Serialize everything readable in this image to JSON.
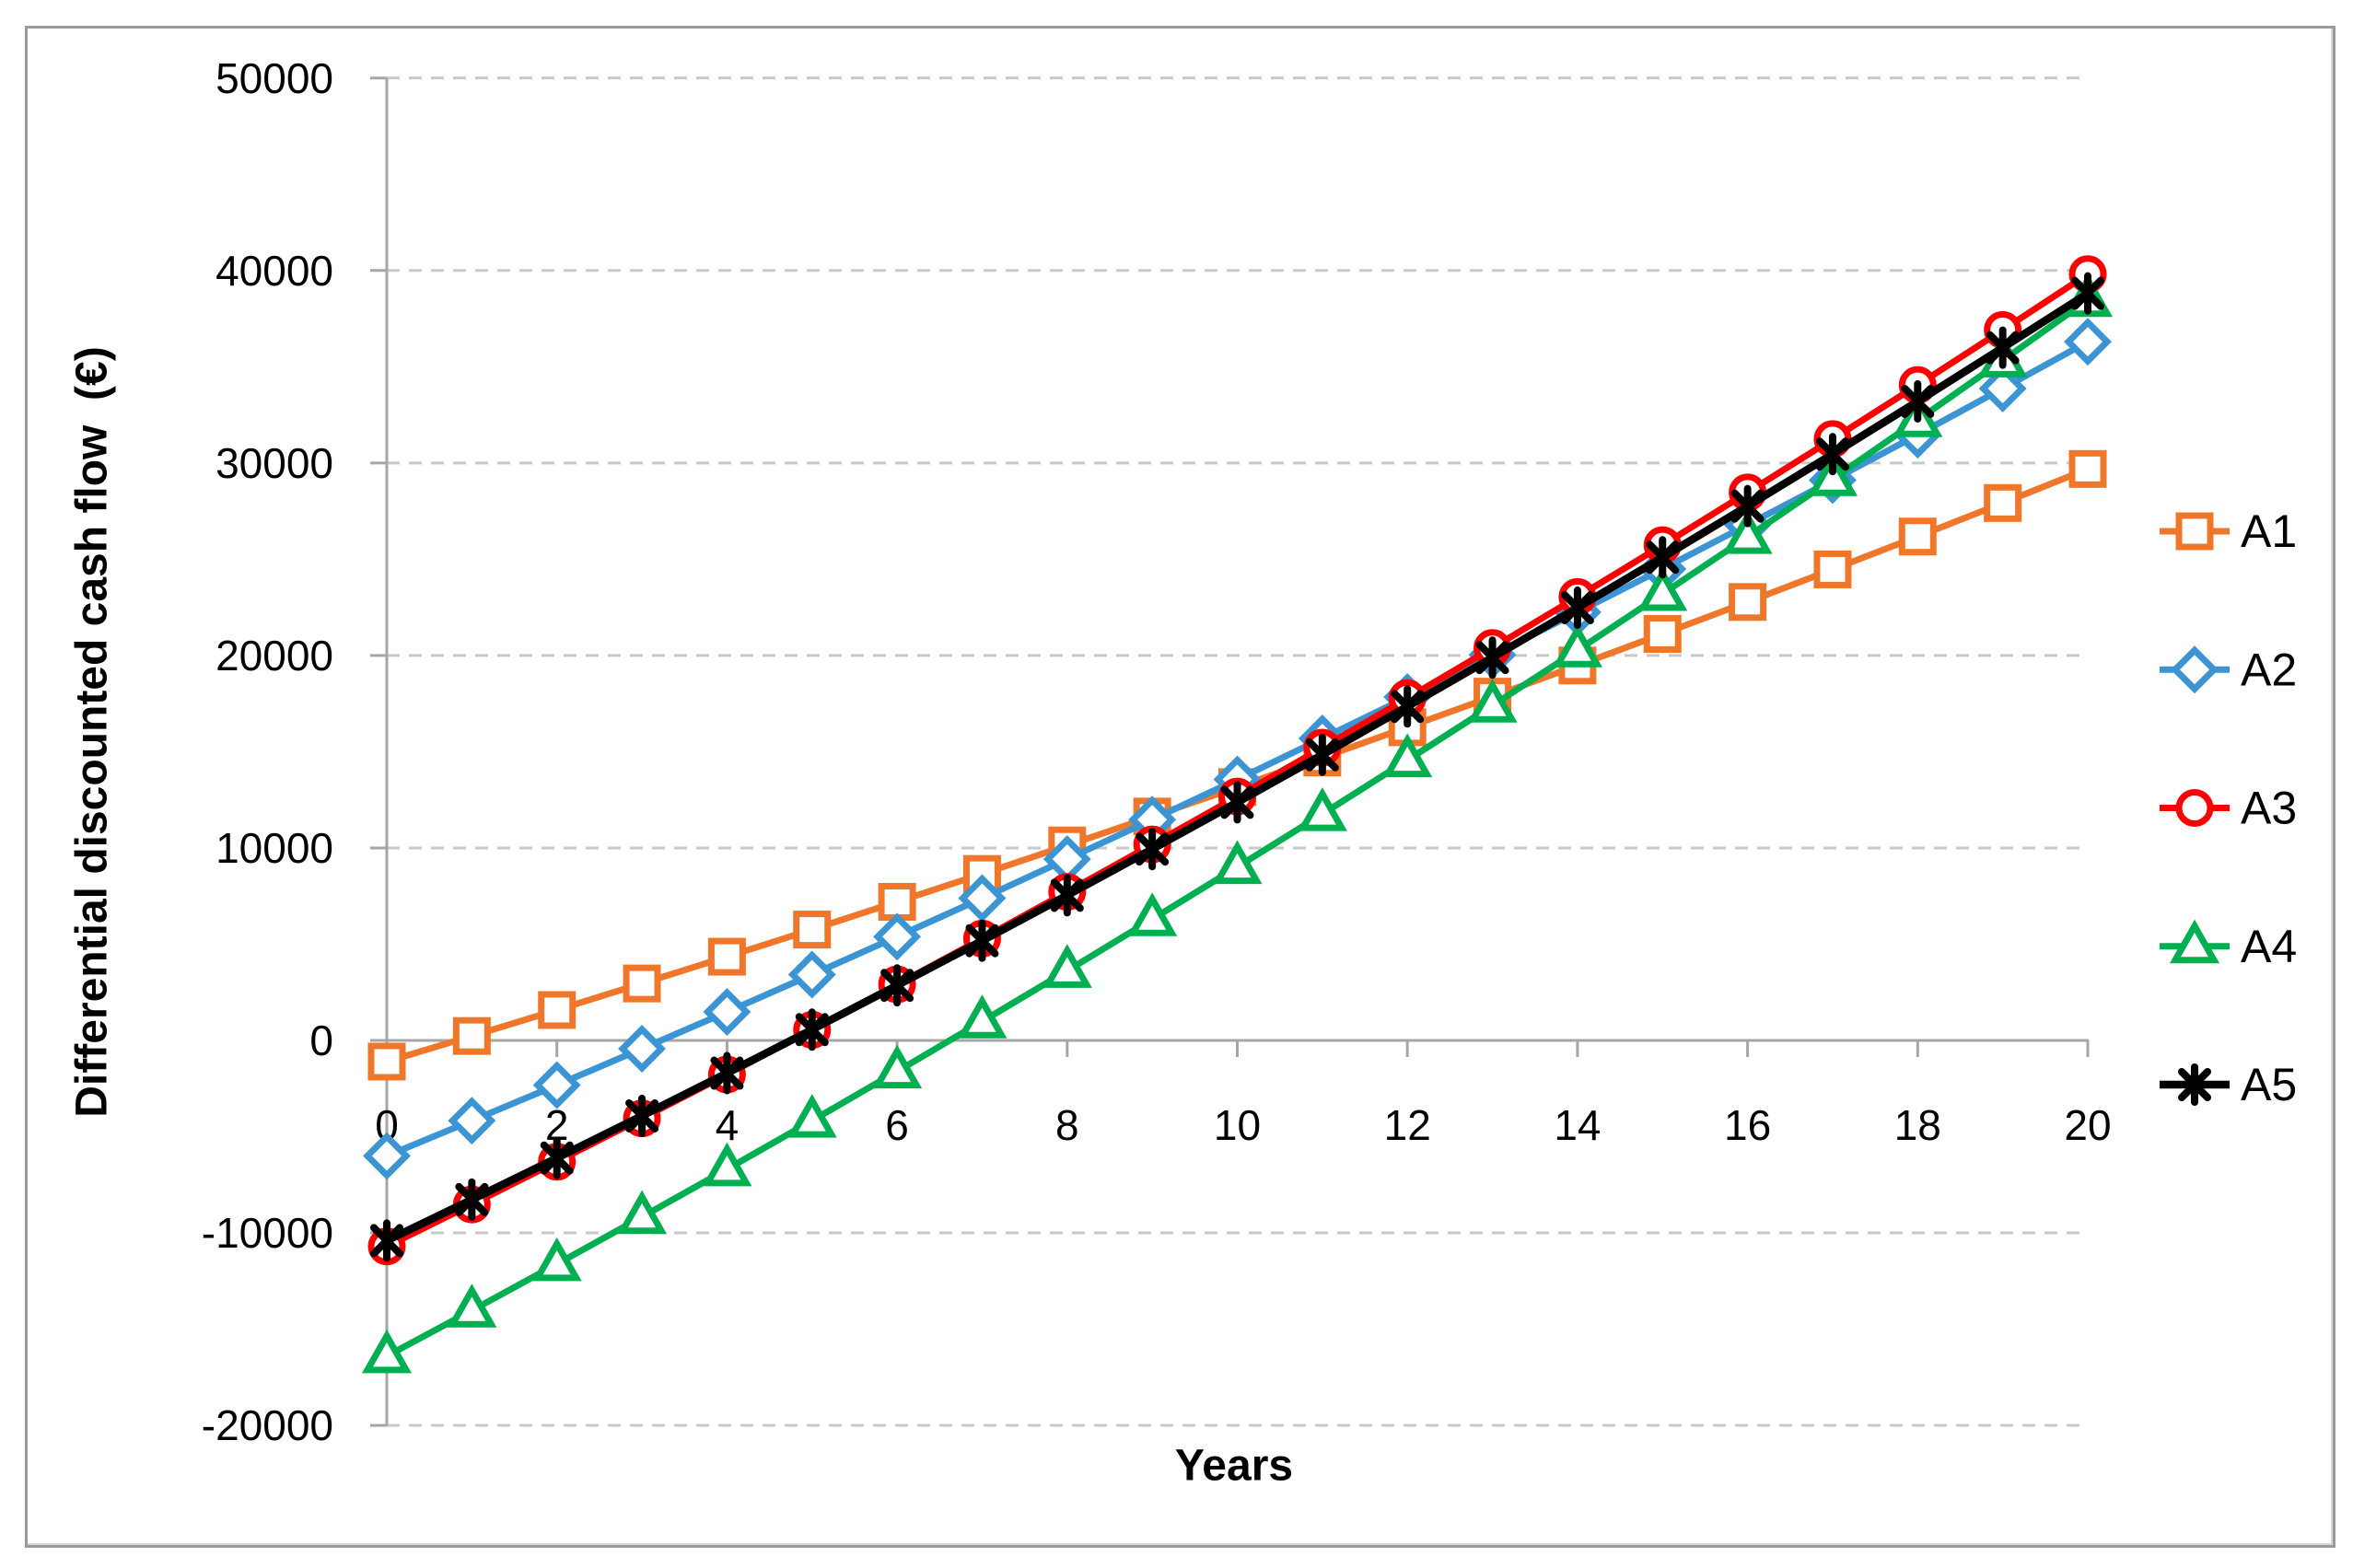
{
  "chart_data": {
    "type": "line",
    "title": "",
    "xlabel": "Years",
    "ylabel": "Differential discounted cash flow  (€)",
    "x": [
      0,
      1,
      2,
      3,
      4,
      5,
      6,
      7,
      8,
      9,
      10,
      11,
      12,
      13,
      14,
      15,
      16,
      17,
      18,
      19,
      20
    ],
    "x_tick_labels": [
      "0",
      "2",
      "4",
      "6",
      "8",
      "10",
      "12",
      "14",
      "16",
      "18",
      "20"
    ],
    "x_tick_values": [
      0,
      2,
      4,
      6,
      8,
      10,
      12,
      14,
      16,
      18,
      20
    ],
    "y_tick_labels": [
      "50000",
      "40000",
      "30000",
      "20000",
      "10000",
      "0",
      "-10000",
      "-20000"
    ],
    "y_tick_values": [
      50000,
      40000,
      30000,
      20000,
      10000,
      0,
      -10000,
      -20000
    ],
    "ylim": [
      -20000,
      50000
    ],
    "xlim": [
      0,
      20
    ],
    "grid": "horizontal-dashed",
    "legend_position": "right",
    "series": [
      {
        "name": "A1",
        "color": "#F0772A",
        "marker": "square",
        "values": [
          -1100,
          230,
          1580,
          2960,
          4350,
          5760,
          7200,
          8650,
          10130,
          11630,
          13160,
          14700,
          16270,
          17860,
          19480,
          21120,
          22780,
          24470,
          26180,
          27920,
          29690
        ]
      },
      {
        "name": "A2",
        "color": "#3B94D3",
        "marker": "diamond",
        "values": [
          -6000,
          -4170,
          -2320,
          -430,
          1480,
          3420,
          5390,
          7390,
          9420,
          11470,
          13560,
          15690,
          17840,
          20030,
          22250,
          24500,
          26790,
          29110,
          31470,
          33870,
          36300
        ]
      },
      {
        "name": "A3",
        "color": "#FF0000",
        "marker": "circle",
        "values": [
          -10700,
          -8520,
          -6300,
          -4050,
          -1770,
          550,
          2910,
          5290,
          7720,
          10180,
          12670,
          15210,
          17780,
          20390,
          23040,
          25730,
          28470,
          31240,
          34050,
          36910,
          39810
        ]
      },
      {
        "name": "A4",
        "color": "#00B050",
        "marker": "triangle",
        "values": [
          -16400,
          -14030,
          -11620,
          -9170,
          -6690,
          -4170,
          -1610,
          990,
          3620,
          6300,
          9010,
          11760,
          14560,
          17400,
          20270,
          23200,
          26160,
          29170,
          32230,
          35330,
          38470
        ]
      },
      {
        "name": "A5",
        "color": "#000000",
        "marker": "asterisk",
        "values": [
          -10400,
          -8270,
          -6110,
          -3920,
          -1700,
          560,
          2860,
          5180,
          7540,
          9940,
          12370,
          14840,
          17350,
          19890,
          22480,
          25100,
          27760,
          30460,
          33200,
          35990,
          38810
        ]
      }
    ]
  },
  "style_colors": {
    "gridline": "#C9C9C9",
    "axis_line": "#A6A6A6",
    "tick_text": "#000000",
    "frame_border": "#9A9A9A",
    "background": "#FFFFFF"
  }
}
